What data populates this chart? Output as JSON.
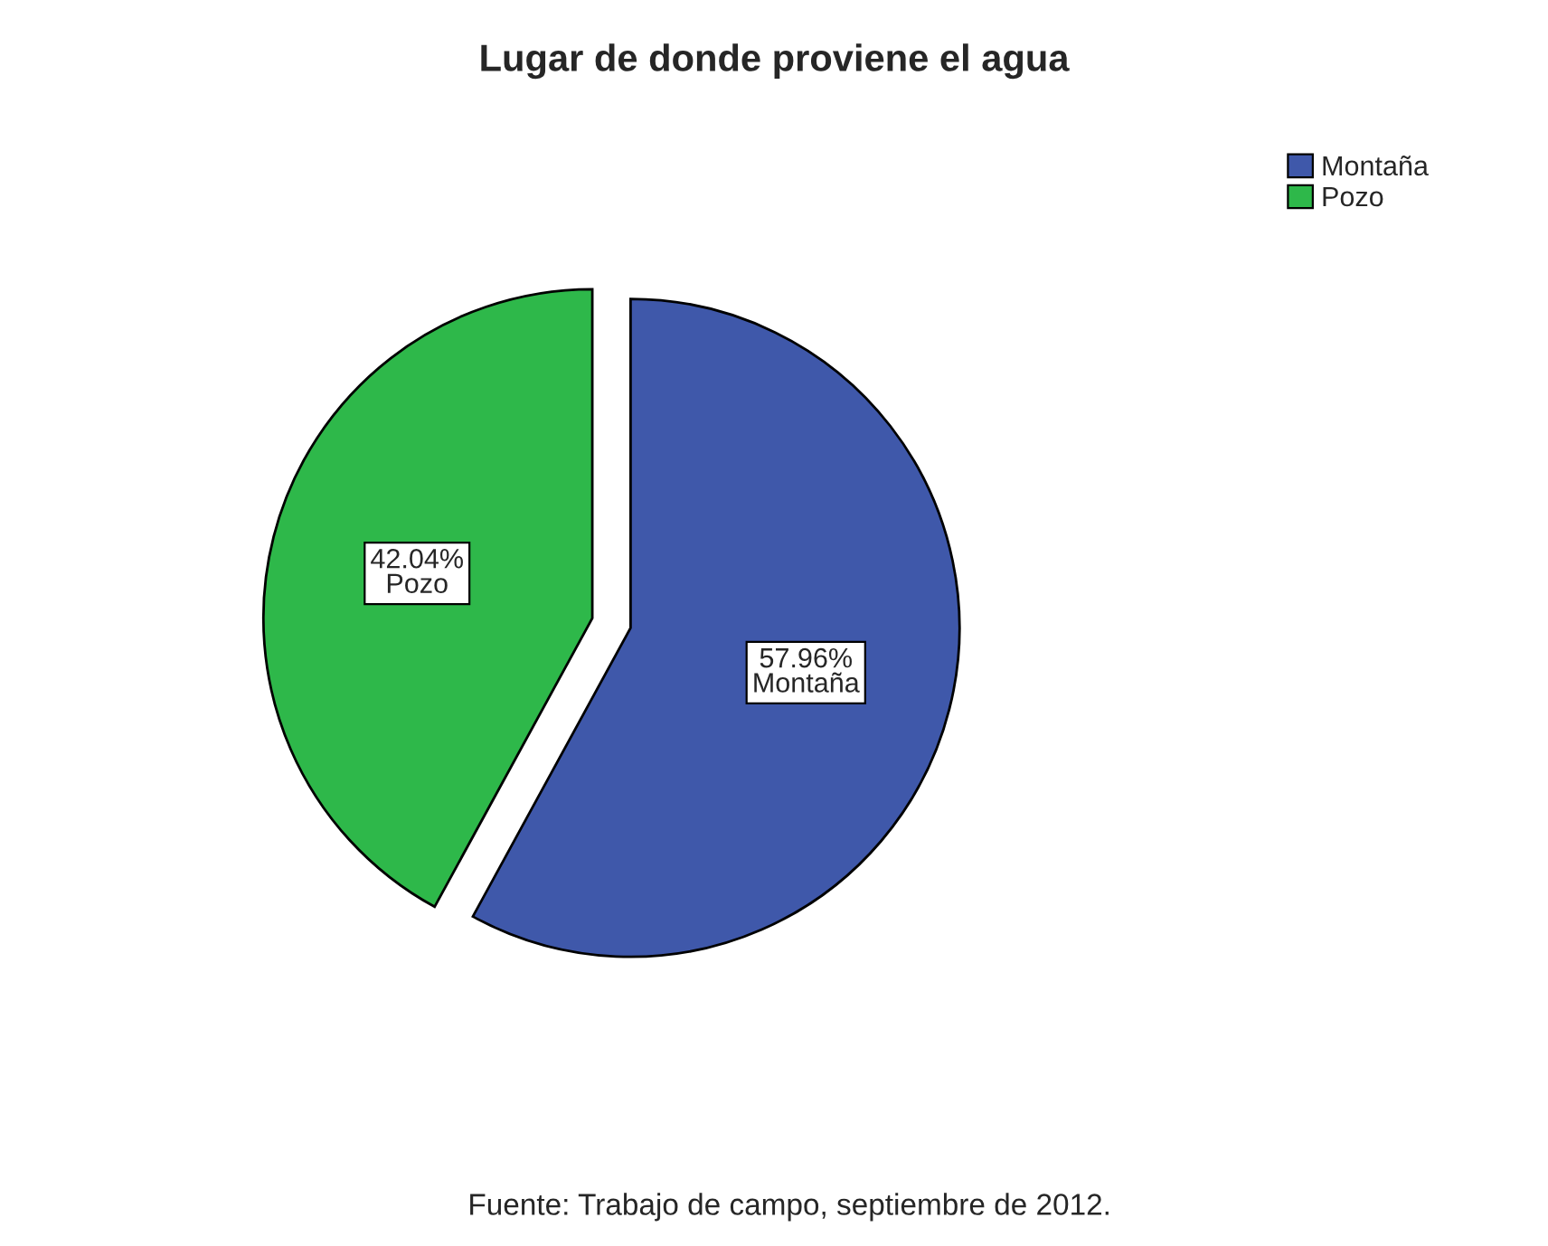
{
  "chart_data": {
    "type": "pie",
    "title": "Lugar de donde proviene el agua",
    "categories": [
      "Montaña",
      "Pozo"
    ],
    "values": [
      57.96,
      42.04
    ],
    "colors": [
      "#3f58aa",
      "#2eb84a"
    ],
    "value_labels": [
      "57.96%\nMontaña",
      "42.04%\nPozo"
    ],
    "legend": "top right",
    "annotations": [
      "Fuente: Trabajo de campo, septiembre de 2012."
    ]
  }
}
